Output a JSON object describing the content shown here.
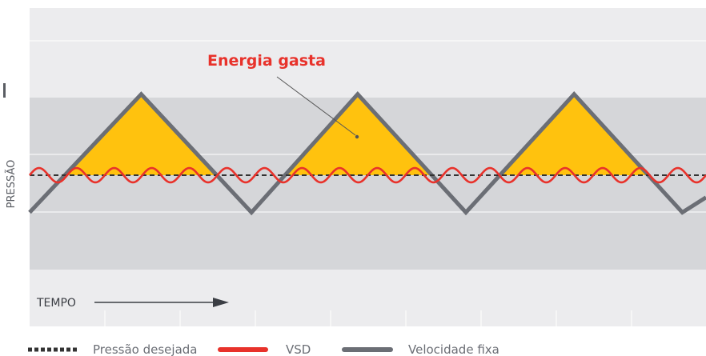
{
  "chart_data": {
    "type": "line",
    "title": "",
    "xlabel": "TEMPO",
    "ylabel": "PRESSÃO",
    "annotation": "Energia gasta",
    "grid": true,
    "x_ticks": 9,
    "series": [
      {
        "name": "Pressão desejada",
        "style": "dashed",
        "color": "#333333",
        "x": [
          0,
          1
        ],
        "y": [
          0,
          0
        ]
      },
      {
        "name": "VSD",
        "style": "wave",
        "color": "#e8322b",
        "amplitude": 0.12,
        "cycles": 18,
        "x": [
          0,
          1
        ],
        "y": [
          0,
          0
        ]
      },
      {
        "name": "Velocidade fixa",
        "style": "solid",
        "color": "#6b6e75",
        "x": [
          0,
          0.165,
          0.328,
          0.485,
          0.645,
          0.805,
          0.965,
          1.0
        ],
        "y": [
          -0.62,
          1.35,
          -0.62,
          1.35,
          -0.62,
          1.35,
          -0.62,
          -0.37
        ]
      }
    ],
    "fill": {
      "name": "Energia gasta",
      "color": "#ffc20e",
      "region": "Velocidade fixa above Pressão desejada"
    }
  },
  "legend": {
    "items": [
      {
        "label": "Pressão desejada",
        "style": "dashed",
        "color": "#333333"
      },
      {
        "label": "VSD",
        "style": "solid",
        "color": "#e8322b"
      },
      {
        "label": "Velocidade fixa",
        "style": "solid",
        "color": "#6b6e75"
      }
    ]
  },
  "colors": {
    "band_light": "#ececee",
    "band_mid": "#d5d6d9",
    "grid": "#ffffff",
    "accent_red": "#e8322b",
    "fill_yellow": "#ffc20e",
    "axis_text": "#5a5d63",
    "legend_text": "#6b6e75"
  }
}
